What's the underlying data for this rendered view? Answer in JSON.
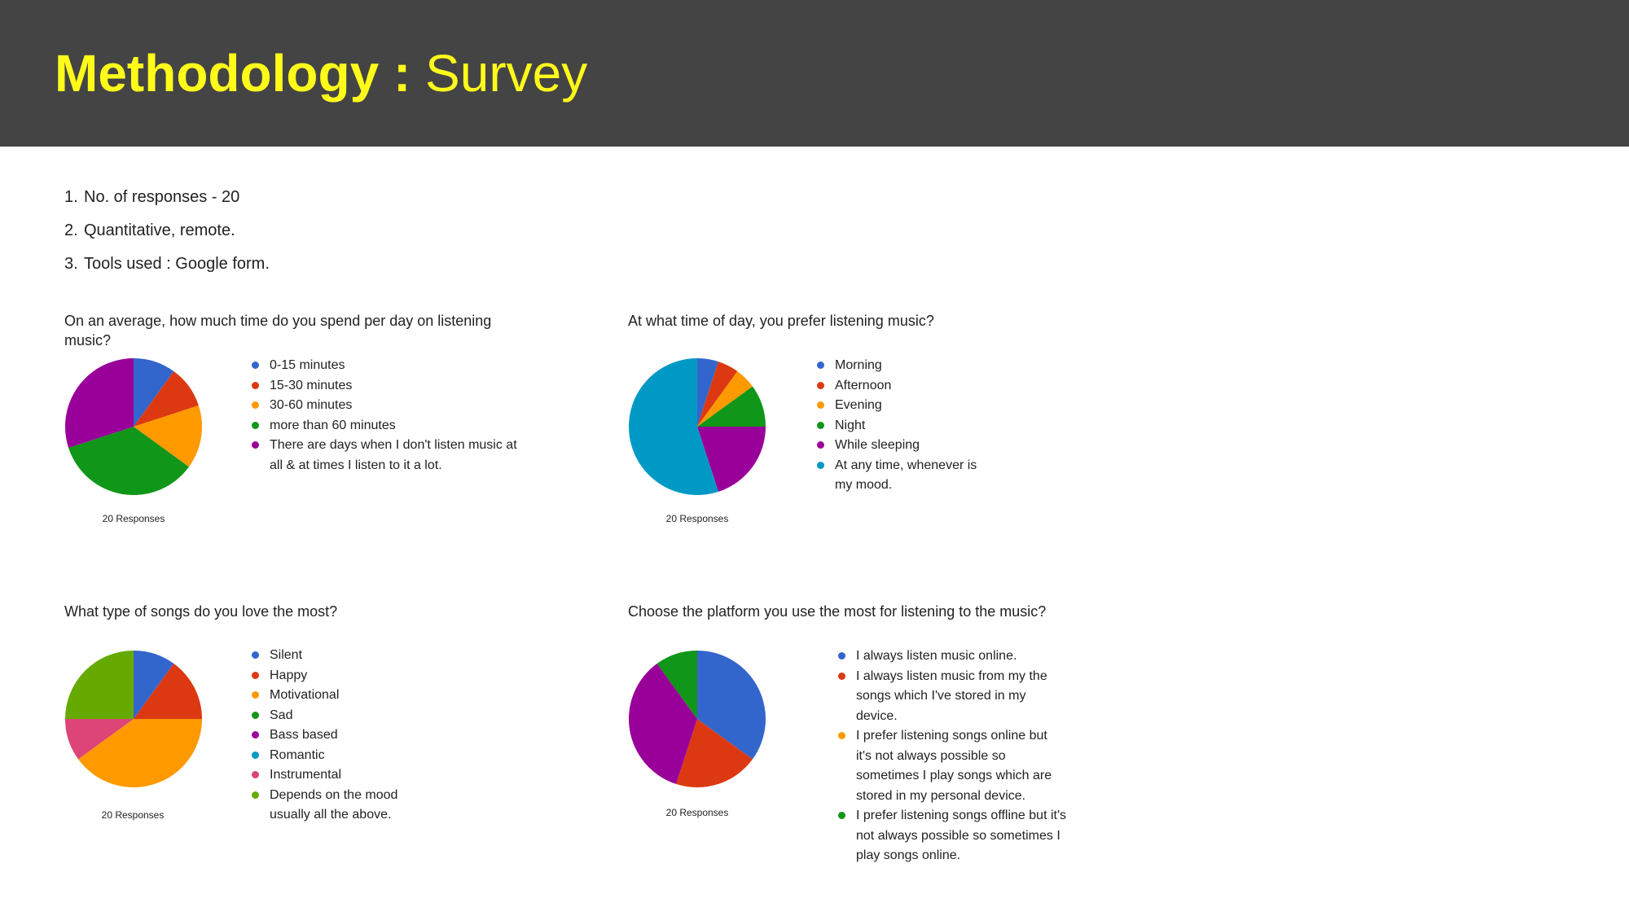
{
  "header": {
    "title_bold": "Methodology :",
    "title_light": " Survey"
  },
  "points": [
    {
      "num": "1.",
      "text": "No. of responses - 20"
    },
    {
      "num": "2.",
      "text": "Quantitative, remote."
    },
    {
      "num": "3.",
      "text": "Tools used : Google form."
    }
  ],
  "chart_data": [
    {
      "type": "pie",
      "title": "On an average, how much time do you spend per day on listening music?",
      "footnote": "20 Responses",
      "categories": [
        "0-15 minutes",
        "15-30 minutes",
        "30-60 minutes",
        "more than 60 minutes",
        "There are days when I don't listen music at all & at times I listen to it a lot."
      ],
      "values": [
        2,
        2,
        3,
        7,
        6
      ],
      "colors": [
        "#3366cc",
        "#dc3912",
        "#ff9900",
        "#109618",
        "#990099"
      ]
    },
    {
      "type": "pie",
      "title": "At what time of day, you prefer listening music?",
      "footnote": "20 Responses",
      "categories": [
        "Morning",
        "Afternoon",
        "Evening",
        "Night",
        "While sleeping",
        "At any time, whenever is my mood."
      ],
      "values": [
        1,
        1,
        1,
        2,
        4,
        11
      ],
      "colors": [
        "#3366cc",
        "#dc3912",
        "#ff9900",
        "#109618",
        "#990099",
        "#0099c6"
      ]
    },
    {
      "type": "pie",
      "title": "What type of songs do you love the most?",
      "footnote": "20 Responses",
      "categories": [
        "Silent",
        "Happy",
        "Motivational",
        "Sad",
        "Bass based",
        "Romantic",
        "Instrumental",
        "Depends on the mood usually all the above."
      ],
      "values": [
        2,
        3,
        8,
        0,
        0,
        0,
        2,
        5
      ],
      "colors": [
        "#3366cc",
        "#dc3912",
        "#ff9900",
        "#109618",
        "#990099",
        "#0099c6",
        "#dd4477",
        "#66aa00"
      ]
    },
    {
      "type": "pie",
      "title": "Choose the  platform you use the most for listening to the music?",
      "footnote": "20 Responses",
      "categories": [
        "I always listen music online.",
        "I always  listen music from my  the songs which I've stored in my device.",
        "I prefer listening songs online but it's not always possible so sometimes I play songs which are stored in my personal device.",
        "I prefer listening songs offline but it's not always possible so sometimes I play songs online."
      ],
      "values": [
        7,
        4,
        7,
        2
      ],
      "colors": [
        "#3366cc",
        "#dc3912",
        "#990099",
        "#109618"
      ],
      "legend_colors": [
        "#3366cc",
        "#dc3912",
        "#ff9900",
        "#109618"
      ]
    }
  ]
}
